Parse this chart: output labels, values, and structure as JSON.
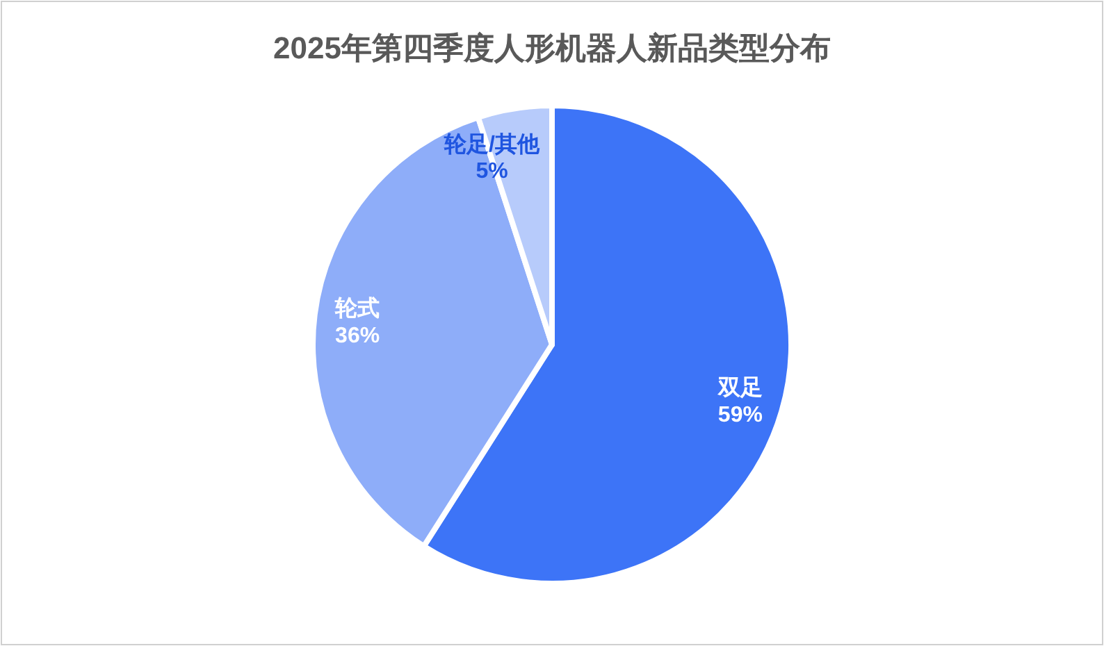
{
  "chart_data": {
    "type": "pie",
    "title": "2025年第四季度人形机器人新品类型分布",
    "categories": [
      "双足",
      "轮式",
      "轮足/其他"
    ],
    "values": [
      59,
      36,
      5
    ],
    "colors": [
      "#3d74f7",
      "#8eadf9",
      "#b7cbfb"
    ],
    "value_labels": [
      "59%",
      "36%",
      "5%"
    ]
  }
}
